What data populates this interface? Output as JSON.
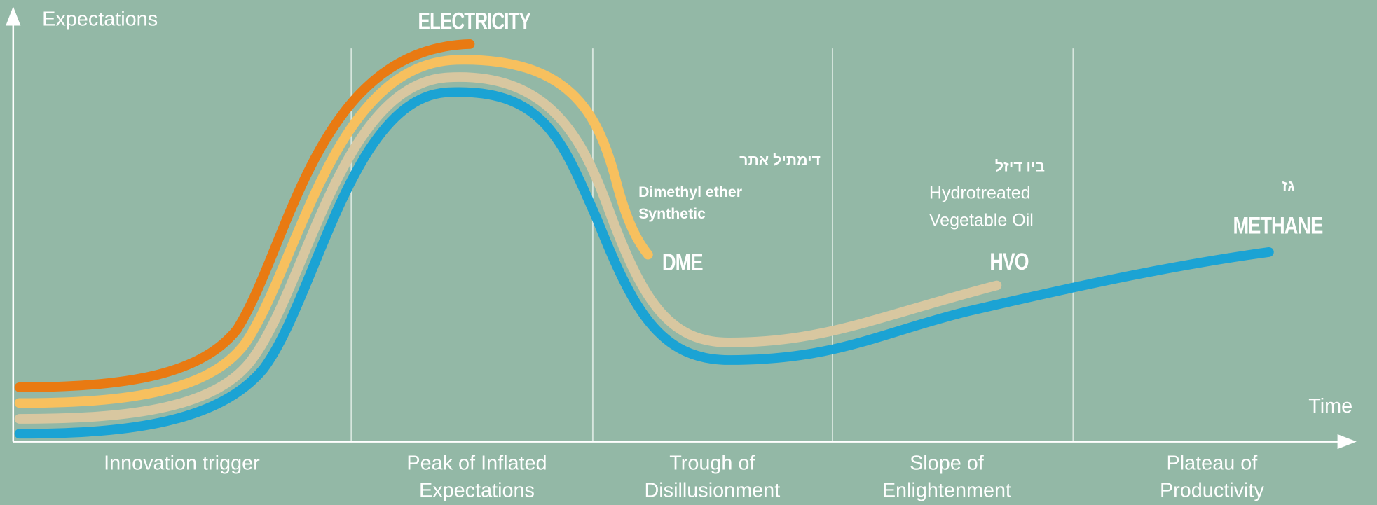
{
  "axes": {
    "y_label": "Expectations",
    "x_label": "Time"
  },
  "phases": [
    [
      "Innovation trigger"
    ],
    [
      "Peak of Inflated",
      "Expectations"
    ],
    [
      "Trough of",
      "Disillusionment"
    ],
    [
      "Slope of",
      "Enlightenment"
    ],
    [
      "Plateau of",
      "Productivity"
    ]
  ],
  "labels": {
    "electricity": "ELECTRICITY",
    "dme": {
      "name": "DME",
      "hebrew": "דימתיל אתר",
      "lines": [
        "Dimethyl ether",
        "Synthetic"
      ]
    },
    "hvo": {
      "name": "HVO",
      "hebrew": "ביו דיזל",
      "lines": [
        "Hydrotreated",
        "Vegetable Oil"
      ]
    },
    "methane": {
      "name": "METHANE",
      "hebrew": "גז"
    }
  }
}
